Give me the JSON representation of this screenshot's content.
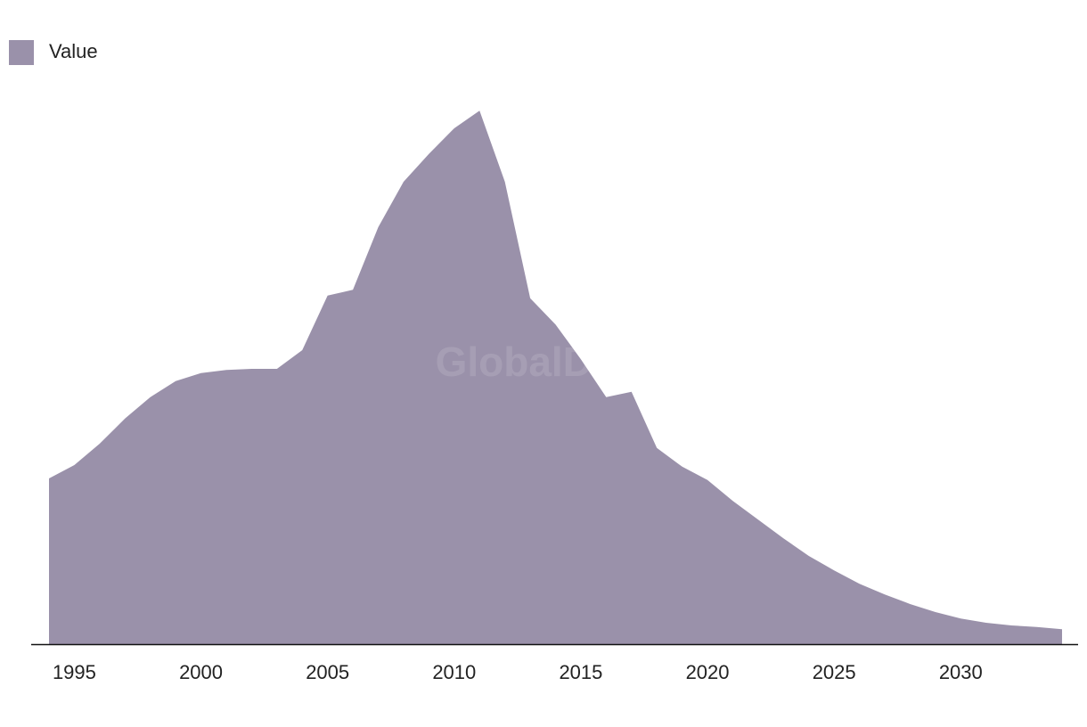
{
  "chart_data": {
    "type": "area",
    "watermark": "GlobalData",
    "x": [
      1994,
      1995,
      1996,
      1997,
      1998,
      1999,
      2000,
      2001,
      2002,
      2003,
      2004,
      2005,
      2006,
      2007,
      2008,
      2009,
      2010,
      2011,
      2012,
      2013,
      2014,
      2015,
      2016,
      2017,
      2018,
      2019,
      2020,
      2021,
      2022,
      2023,
      2024,
      2025,
      2026,
      2027,
      2028,
      2029,
      2030,
      2031,
      2032,
      2033,
      2034
    ],
    "series": [
      {
        "name": "Value",
        "color": "#9a91aa",
        "values": [
          31.0,
          33.5,
          37.5,
          42.2,
          46.2,
          49.2,
          50.7,
          51.3,
          51.5,
          51.5,
          55.0,
          65.2,
          66.3,
          78.0,
          86.5,
          91.7,
          96.5,
          99.8,
          86.5,
          64.7,
          59.8,
          53.3,
          46.2,
          47.2,
          36.7,
          33.2,
          30.7,
          26.8,
          23.3,
          19.8,
          16.5,
          13.8,
          11.3,
          9.3,
          7.5,
          6.0,
          4.8,
          4.0,
          3.5,
          3.2,
          2.8
        ]
      }
    ],
    "xlim": [
      1994,
      2034
    ],
    "xticks": [
      1995,
      2000,
      2005,
      2010,
      2015,
      2020,
      2025,
      2030
    ],
    "ylim": [
      0,
      100
    ],
    "legend": "top-left"
  }
}
